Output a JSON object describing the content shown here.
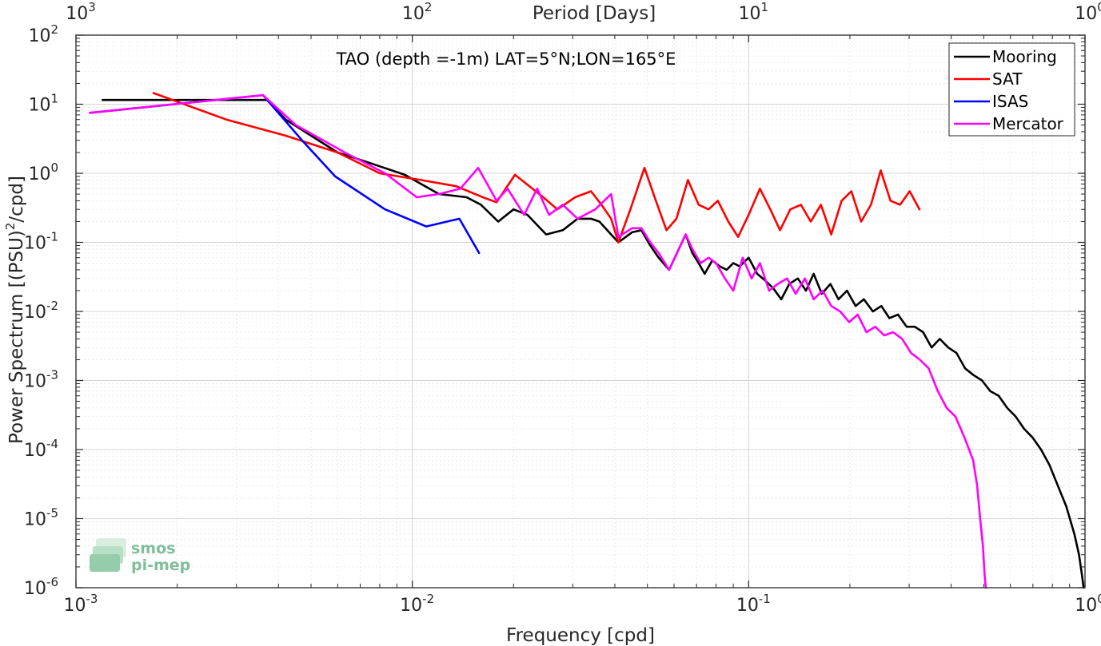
{
  "chart_data": {
    "type": "line",
    "title": "TAO (depth =-1m) LAT=5°N;LON=165°E",
    "xlabel": "Frequency [cpd]",
    "ylabel_main": "Power Spectrum [(PSU)",
    "ylabel_sup": "2",
    "ylabel_tail": "/cpd]",
    "top_axis_label": "Period [Days]",
    "x_scale": "log",
    "y_scale": "log",
    "xlim": [
      0.001,
      1
    ],
    "ylim": [
      1e-06,
      100
    ],
    "grid": true,
    "legend_position": "top-right",
    "x_ticks": [
      {
        "value": 0.001,
        "base": "10",
        "exp": "-3"
      },
      {
        "value": 0.01,
        "base": "10",
        "exp": "-2"
      },
      {
        "value": 0.1,
        "base": "10",
        "exp": "-1"
      },
      {
        "value": 1,
        "base": "10",
        "exp": "0"
      }
    ],
    "y_ticks": [
      {
        "value": 100,
        "base": "10",
        "exp": "2"
      },
      {
        "value": 10,
        "base": "10",
        "exp": "1"
      },
      {
        "value": 1,
        "base": "10",
        "exp": "0"
      },
      {
        "value": 0.1,
        "base": "10",
        "exp": "-1"
      },
      {
        "value": 0.01,
        "base": "10",
        "exp": "-2"
      },
      {
        "value": 0.001,
        "base": "10",
        "exp": "-3"
      },
      {
        "value": 0.0001,
        "base": "10",
        "exp": "-4"
      },
      {
        "value": 1e-05,
        "base": "10",
        "exp": "-5"
      },
      {
        "value": 1e-06,
        "base": "10",
        "exp": "-6"
      }
    ],
    "top_ticks": [
      {
        "value": 0.001,
        "base": "10",
        "exp": "3"
      },
      {
        "value": 0.01,
        "base": "10",
        "exp": "2"
      },
      {
        "value": 0.1,
        "base": "10",
        "exp": "1"
      },
      {
        "value": 1,
        "base": "10",
        "exp": "0"
      }
    ],
    "series": [
      {
        "name": "Mooring",
        "color": "#000000",
        "points": [
          [
            0.0012,
            11.5
          ],
          [
            0.0037,
            11.5
          ],
          [
            0.0042,
            6
          ],
          [
            0.006,
            2
          ],
          [
            0.0072,
            1.5
          ],
          [
            0.0095,
            0.95
          ],
          [
            0.012,
            0.5
          ],
          [
            0.0145,
            0.45
          ],
          [
            0.016,
            0.35
          ],
          [
            0.018,
            0.2
          ],
          [
            0.02,
            0.3
          ],
          [
            0.022,
            0.25
          ],
          [
            0.025,
            0.13
          ],
          [
            0.028,
            0.15
          ],
          [
            0.031,
            0.22
          ],
          [
            0.034,
            0.22
          ],
          [
            0.036,
            0.2
          ],
          [
            0.039,
            0.13
          ],
          [
            0.041,
            0.1
          ],
          [
            0.045,
            0.14
          ],
          [
            0.048,
            0.15
          ],
          [
            0.051,
            0.09
          ],
          [
            0.054,
            0.06
          ],
          [
            0.058,
            0.04
          ],
          [
            0.062,
            0.08
          ],
          [
            0.065,
            0.13
          ],
          [
            0.068,
            0.07
          ],
          [
            0.071,
            0.05
          ],
          [
            0.074,
            0.035
          ],
          [
            0.078,
            0.055
          ],
          [
            0.082,
            0.045
          ],
          [
            0.086,
            0.04
          ],
          [
            0.09,
            0.05
          ],
          [
            0.094,
            0.045
          ],
          [
            0.1,
            0.06
          ],
          [
            0.106,
            0.035
          ],
          [
            0.112,
            0.028
          ],
          [
            0.118,
            0.022
          ],
          [
            0.125,
            0.015
          ],
          [
            0.132,
            0.025
          ],
          [
            0.14,
            0.03
          ],
          [
            0.148,
            0.02
          ],
          [
            0.156,
            0.035
          ],
          [
            0.165,
            0.018
          ],
          [
            0.175,
            0.025
          ],
          [
            0.185,
            0.015
          ],
          [
            0.196,
            0.02
          ],
          [
            0.208,
            0.012
          ],
          [
            0.22,
            0.015
          ],
          [
            0.234,
            0.01
          ],
          [
            0.248,
            0.012
          ],
          [
            0.262,
            0.008
          ],
          [
            0.278,
            0.009
          ],
          [
            0.295,
            0.006
          ],
          [
            0.312,
            0.006
          ],
          [
            0.33,
            0.005
          ],
          [
            0.35,
            0.003
          ],
          [
            0.37,
            0.004
          ],
          [
            0.392,
            0.003
          ],
          [
            0.415,
            0.0025
          ],
          [
            0.44,
            0.0015
          ],
          [
            0.466,
            0.0012
          ],
          [
            0.494,
            0.001
          ],
          [
            0.523,
            0.0007
          ],
          [
            0.554,
            0.0006
          ],
          [
            0.587,
            0.0004
          ],
          [
            0.622,
            0.0003
          ],
          [
            0.659,
            0.0002
          ],
          [
            0.698,
            0.00015
          ],
          [
            0.74,
            0.0001
          ],
          [
            0.784,
            6e-05
          ],
          [
            0.83,
            3e-05
          ],
          [
            0.88,
            1.5e-05
          ],
          [
            0.93,
            6e-06
          ],
          [
            0.96,
            3e-06
          ],
          [
            0.98,
            1.5e-06
          ],
          [
            0.99,
            1e-06
          ]
        ]
      },
      {
        "name": "SAT",
        "color": "#ff0000",
        "points": [
          [
            0.0017,
            14.5
          ],
          [
            0.0028,
            6
          ],
          [
            0.0042,
            3.5
          ],
          [
            0.006,
            2
          ],
          [
            0.008,
            1
          ],
          [
            0.0106,
            0.8
          ],
          [
            0.0135,
            0.65
          ],
          [
            0.0162,
            0.45
          ],
          [
            0.0178,
            0.38
          ],
          [
            0.0202,
            0.95
          ],
          [
            0.0245,
            0.45
          ],
          [
            0.027,
            0.3
          ],
          [
            0.0305,
            0.45
          ],
          [
            0.034,
            0.55
          ],
          [
            0.0365,
            0.35
          ],
          [
            0.039,
            0.22
          ],
          [
            0.041,
            0.1
          ],
          [
            0.0445,
            0.3
          ],
          [
            0.049,
            1.2
          ],
          [
            0.053,
            0.4
          ],
          [
            0.057,
            0.15
          ],
          [
            0.061,
            0.22
          ],
          [
            0.066,
            0.8
          ],
          [
            0.071,
            0.35
          ],
          [
            0.076,
            0.3
          ],
          [
            0.081,
            0.4
          ],
          [
            0.087,
            0.2
          ],
          [
            0.093,
            0.12
          ],
          [
            0.1,
            0.25
          ],
          [
            0.108,
            0.6
          ],
          [
            0.116,
            0.3
          ],
          [
            0.124,
            0.15
          ],
          [
            0.133,
            0.3
          ],
          [
            0.143,
            0.35
          ],
          [
            0.153,
            0.2
          ],
          [
            0.164,
            0.35
          ],
          [
            0.176,
            0.13
          ],
          [
            0.189,
            0.4
          ],
          [
            0.202,
            0.55
          ],
          [
            0.216,
            0.2
          ],
          [
            0.231,
            0.35
          ],
          [
            0.247,
            1.1
          ],
          [
            0.264,
            0.4
          ],
          [
            0.282,
            0.35
          ],
          [
            0.301,
            0.55
          ],
          [
            0.322,
            0.3
          ]
        ]
      },
      {
        "name": "ISAS",
        "color": "#0000ff",
        "points": [
          [
            0.0011,
            7.5
          ],
          [
            0.0036,
            13.5
          ],
          [
            0.0047,
            3
          ],
          [
            0.0059,
            0.9
          ],
          [
            0.0083,
            0.3
          ],
          [
            0.011,
            0.17
          ],
          [
            0.0138,
            0.22
          ],
          [
            0.0158,
            0.07
          ]
        ]
      },
      {
        "name": "Mercator",
        "color": "#ff00ff",
        "points": [
          [
            0.0011,
            7.5
          ],
          [
            0.0036,
            13.5
          ],
          [
            0.0045,
            5
          ],
          [
            0.0063,
            2
          ],
          [
            0.0083,
            1
          ],
          [
            0.0103,
            0.45
          ],
          [
            0.012,
            0.5
          ],
          [
            0.0139,
            0.6
          ],
          [
            0.0157,
            1.2
          ],
          [
            0.0178,
            0.4
          ],
          [
            0.0192,
            0.6
          ],
          [
            0.0215,
            0.25
          ],
          [
            0.0235,
            0.6
          ],
          [
            0.0255,
            0.25
          ],
          [
            0.028,
            0.35
          ],
          [
            0.031,
            0.22
          ],
          [
            0.035,
            0.3
          ],
          [
            0.039,
            0.5
          ],
          [
            0.041,
            0.12
          ],
          [
            0.045,
            0.16
          ],
          [
            0.048,
            0.16
          ],
          [
            0.051,
            0.1
          ],
          [
            0.054,
            0.07
          ],
          [
            0.058,
            0.04
          ],
          [
            0.062,
            0.08
          ],
          [
            0.065,
            0.13
          ],
          [
            0.068,
            0.08
          ],
          [
            0.072,
            0.05
          ],
          [
            0.076,
            0.06
          ],
          [
            0.08,
            0.05
          ],
          [
            0.085,
            0.03
          ],
          [
            0.09,
            0.02
          ],
          [
            0.096,
            0.06
          ],
          [
            0.102,
            0.03
          ],
          [
            0.108,
            0.05
          ],
          [
            0.115,
            0.02
          ],
          [
            0.122,
            0.025
          ],
          [
            0.13,
            0.03
          ],
          [
            0.138,
            0.018
          ],
          [
            0.147,
            0.03
          ],
          [
            0.156,
            0.015
          ],
          [
            0.166,
            0.02
          ],
          [
            0.176,
            0.012
          ],
          [
            0.187,
            0.01
          ],
          [
            0.199,
            0.007
          ],
          [
            0.211,
            0.009
          ],
          [
            0.224,
            0.005
          ],
          [
            0.238,
            0.006
          ],
          [
            0.253,
            0.0045
          ],
          [
            0.269,
            0.005
          ],
          [
            0.286,
            0.004
          ],
          [
            0.304,
            0.0025
          ],
          [
            0.323,
            0.002
          ],
          [
            0.343,
            0.0015
          ],
          [
            0.365,
            0.0007
          ],
          [
            0.388,
            0.0004
          ],
          [
            0.412,
            0.0003
          ],
          [
            0.438,
            0.00015
          ],
          [
            0.465,
            7e-05
          ],
          [
            0.478,
            3e-05
          ],
          [
            0.488,
            1e-05
          ],
          [
            0.497,
            4e-06
          ],
          [
            0.503,
            1.5e-06
          ],
          [
            0.507,
            1e-06
          ]
        ]
      }
    ]
  },
  "logo": {
    "line1": "smos",
    "line2": "pi-mep"
  }
}
